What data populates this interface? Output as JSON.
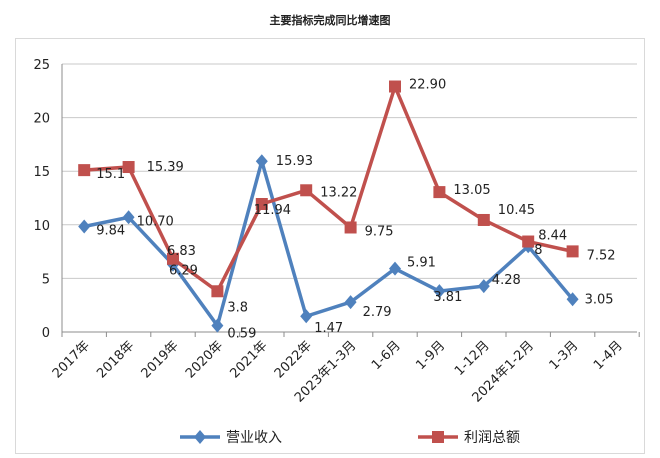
{
  "chart_data": {
    "type": "line",
    "title": "主要指标完成同比增速图",
    "categories": [
      "2017年",
      "2018年",
      "2019年",
      "2020年",
      "2021年",
      "2022年",
      "2023年1-3月",
      "1-6月",
      "1-9月",
      "1-12月",
      "2024年1-2月",
      "1-3月",
      "1-4月"
    ],
    "ylim": [
      0,
      25
    ],
    "yticks": [
      0,
      5,
      10,
      15,
      20,
      25
    ],
    "grid": true,
    "legend_position": "bottom",
    "series": [
      {
        "name": "营业收入",
        "color": "#4f81bd",
        "marker": "diamond",
        "values": [
          9.84,
          10.7,
          6.29,
          0.59,
          15.93,
          1.47,
          2.79,
          5.91,
          3.81,
          4.28,
          8,
          3.05,
          null
        ],
        "labels": [
          "9.84",
          "10.70",
          "6.29",
          "0.59",
          "15.93",
          "1.47",
          "2.79",
          "5.91",
          "3.81",
          "4.28",
          "8",
          "3.05",
          ""
        ]
      },
      {
        "name": "利润总额",
        "color": "#c0504d",
        "marker": "square",
        "values": [
          15.1,
          15.39,
          6.83,
          3.8,
          11.94,
          13.22,
          9.75,
          22.9,
          13.05,
          10.45,
          8.44,
          7.52,
          null
        ],
        "labels": [
          "15.1",
          "15.39",
          "6.83",
          "3.8",
          "11.94",
          "13.22",
          "9.75",
          "22.90",
          "13.05",
          "10.45",
          "8.44",
          "7.52",
          ""
        ]
      }
    ]
  }
}
